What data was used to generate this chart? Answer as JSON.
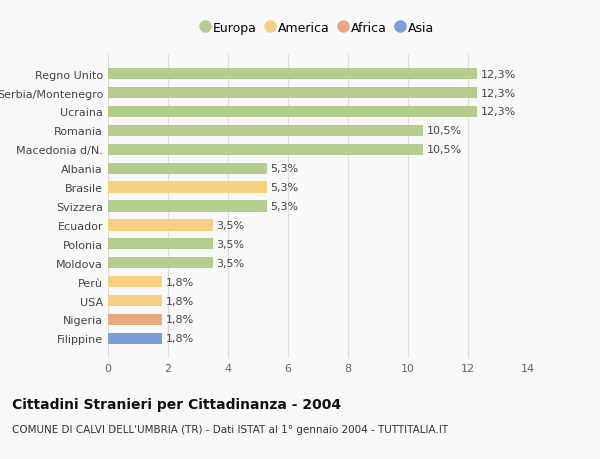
{
  "categories": [
    "Filippine",
    "Nigeria",
    "USA",
    "Perù",
    "Moldova",
    "Polonia",
    "Ecuador",
    "Svizzera",
    "Brasile",
    "Albania",
    "Macedonia d/N.",
    "Romania",
    "Ucraina",
    "Serbia/Montenegro",
    "Regno Unito"
  ],
  "values": [
    1.8,
    1.8,
    1.8,
    1.8,
    3.5,
    3.5,
    3.5,
    5.3,
    5.3,
    5.3,
    10.5,
    10.5,
    12.3,
    12.3,
    12.3
  ],
  "labels": [
    "1,8%",
    "1,8%",
    "1,8%",
    "1,8%",
    "3,5%",
    "3,5%",
    "3,5%",
    "5,3%",
    "5,3%",
    "5,3%",
    "10,5%",
    "10,5%",
    "12,3%",
    "12,3%",
    "12,3%"
  ],
  "colors": [
    "#7b9fd4",
    "#e8a882",
    "#f5d080",
    "#f5d080",
    "#b5cc8e",
    "#b5cc8e",
    "#f5d080",
    "#b5cc8e",
    "#f5d080",
    "#b5cc8e",
    "#b5cc8e",
    "#b5cc8e",
    "#b5cc8e",
    "#b5cc8e",
    "#b5cc8e"
  ],
  "legend_labels": [
    "Europa",
    "America",
    "Africa",
    "Asia"
  ],
  "legend_colors": [
    "#b5cc8e",
    "#f5d080",
    "#e8a882",
    "#7b9fd4"
  ],
  "title": "Cittadini Stranieri per Cittadinanza - 2004",
  "subtitle": "COMUNE DI CALVI DELL'UMBRIA (TR) - Dati ISTAT al 1° gennaio 2004 - TUTTITALIA.IT",
  "xlim": [
    0,
    14
  ],
  "xticks": [
    0,
    2,
    4,
    6,
    8,
    10,
    12,
    14
  ],
  "background_color": "#f9f9f9",
  "grid_color": "#dddddd",
  "bar_height": 0.6,
  "title_fontsize": 10,
  "subtitle_fontsize": 7.5,
  "tick_fontsize": 8,
  "label_fontsize": 8,
  "legend_fontsize": 9
}
